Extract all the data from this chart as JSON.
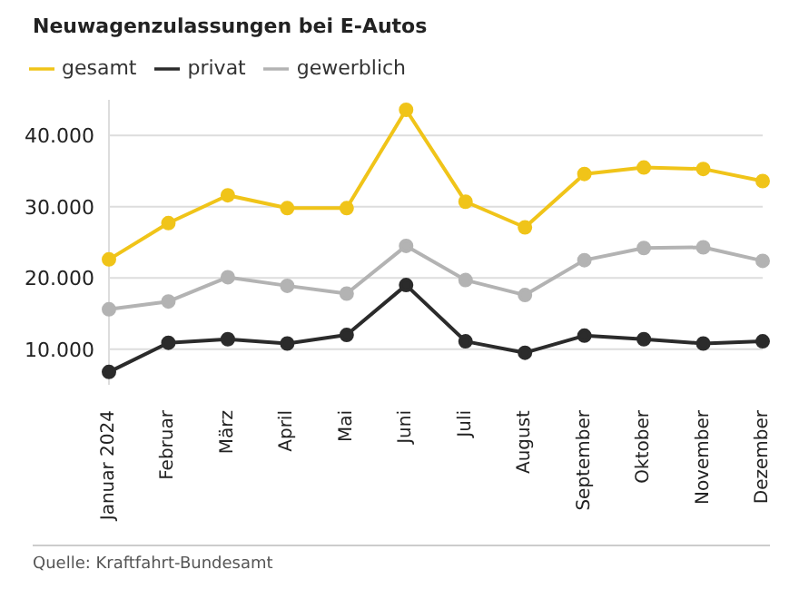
{
  "chart_data": {
    "type": "line",
    "title": "Neuwagenzulassungen bei E-Autos",
    "categories": [
      "Januar 2024",
      "Februar",
      "März",
      "April",
      "Mai",
      "Juni",
      "Juli",
      "August",
      "September",
      "Oktober",
      "November",
      "Dezember"
    ],
    "series": [
      {
        "name": "gesamt",
        "color": "#f0c419",
        "values": [
          22600,
          27700,
          31600,
          29800,
          29800,
          43600,
          30700,
          27100,
          34600,
          35500,
          35300,
          33600
        ]
      },
      {
        "name": "privat",
        "color": "#2b2b2b",
        "values": [
          6800,
          10900,
          11400,
          10800,
          12000,
          19000,
          11100,
          9500,
          11900,
          11400,
          10800,
          11100
        ]
      },
      {
        "name": "gewerblich",
        "color": "#b3b3b3",
        "values": [
          15600,
          16700,
          20100,
          18900,
          17800,
          24500,
          19700,
          17600,
          22500,
          24200,
          24300,
          22400
        ]
      }
    ],
    "yticks": [
      {
        "value": 10000,
        "label": "10.000"
      },
      {
        "value": 20000,
        "label": "20.000"
      },
      {
        "value": 30000,
        "label": "30.000"
      },
      {
        "value": 40000,
        "label": "40.000"
      }
    ],
    "ylim": [
      5000,
      45000
    ],
    "grid": "y",
    "legend": "top left",
    "marker": "circle",
    "line_style": "solid",
    "annotations": [
      "Quelle: Kraftfahrt-Bundesamt"
    ]
  }
}
